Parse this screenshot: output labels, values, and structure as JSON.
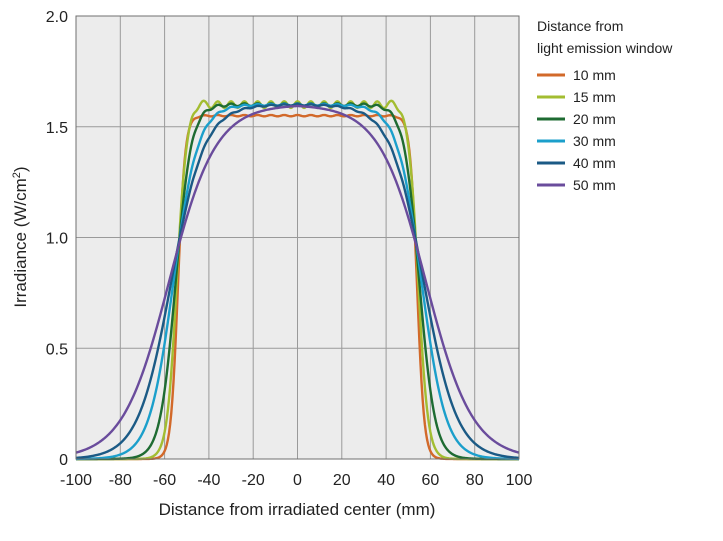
{
  "chart_data": {
    "type": "line",
    "xlabel": "Distance from irradiated center (mm)",
    "ylabel_main": "Irradiance (W/cm",
    "ylabel_sup": "2",
    "ylabel_tail": ")",
    "xlim": [
      -100,
      100
    ],
    "ylim": [
      0,
      2.0
    ],
    "x_ticks": [
      -100,
      -80,
      -60,
      -40,
      -20,
      0,
      20,
      40,
      60,
      80,
      100
    ],
    "x_tick_labels": [
      "-100",
      "-80",
      "-60",
      "-40",
      "-20",
      "0",
      "20",
      "40",
      "60",
      "80",
      "100"
    ],
    "y_ticks": [
      0,
      0.5,
      1.0,
      1.5,
      2.0
    ],
    "y_tick_labels": [
      "0",
      "0.5",
      "1.0",
      "1.5",
      "2.0"
    ],
    "grid": true,
    "plot_background": "#ececec",
    "grid_color": "#9a9a9a",
    "legend_title_line1": "Distance from",
    "legend_title_line2": "light emission window",
    "legend_placement": "right",
    "series": [
      {
        "name": "10 mm",
        "color": "#d2692a",
        "plateau": 1.55,
        "edge": 54,
        "width": 1.6,
        "ripple_amp": 0.003,
        "ripple_freq": 6
      },
      {
        "name": "15 mm",
        "color": "#a3bd31",
        "plateau": 1.6,
        "edge": 54.5,
        "width": 2.2,
        "ripple_amp": 0.015,
        "ripple_freq": 6,
        "peak_amp": 0.02,
        "peak_pos": 44
      },
      {
        "name": "20 mm",
        "color": "#1e6b32",
        "plateau": 1.6,
        "edge": 55,
        "width": 3.5,
        "ripple_amp": 0.006,
        "ripple_freq": 6
      },
      {
        "name": "30 mm",
        "color": "#1b9fcb",
        "plateau": 1.6,
        "edge": 56,
        "width": 5.5,
        "ripple_amp": 0.004,
        "ripple_freq": 6
      },
      {
        "name": "40 mm",
        "color": "#1b5a85",
        "plateau": 1.6,
        "edge": 57,
        "width": 7.5,
        "ripple_amp": 0.003,
        "ripple_freq": 6
      },
      {
        "name": "50 mm",
        "color": "#6a4c9c",
        "plateau": 1.6,
        "edge": 58,
        "width": 10.5,
        "ripple_amp": 0.0,
        "ripple_freq": 6
      }
    ]
  }
}
